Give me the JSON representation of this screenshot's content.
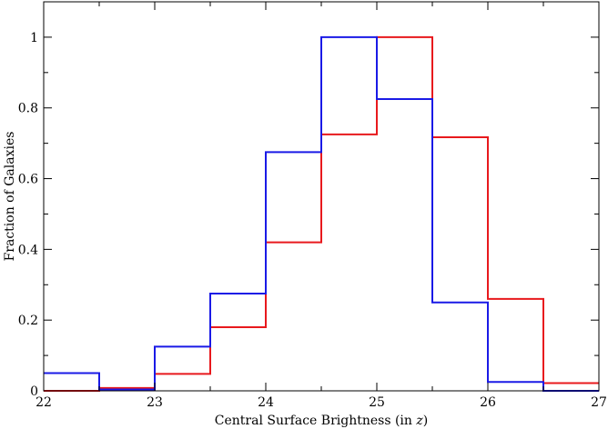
{
  "chart_data": {
    "type": "step-histogram",
    "xlabel": "Central Surface Brightness (in ",
    "xlabel_var": "z",
    "xlabel_close": ")",
    "ylabel": "Fraction of Galaxies",
    "xlim": [
      22,
      27
    ],
    "ylim": [
      0,
      1.1
    ],
    "xticks": [
      22,
      23,
      24,
      25,
      26,
      27
    ],
    "yticks": [
      0,
      0.2,
      0.4,
      0.6,
      0.8,
      1
    ],
    "ytick_labels": [
      "0",
      "0.2",
      "0.4",
      "0.6",
      "0.8",
      "1"
    ],
    "bin_edges": [
      22,
      22.5,
      23,
      23.5,
      24,
      24.5,
      25,
      25.5,
      26,
      26.5,
      27
    ],
    "series": [
      {
        "color": "#e8191d",
        "values": [
          0.0,
          0.008,
          0.048,
          0.18,
          0.42,
          0.725,
          1.0,
          0.717,
          0.26,
          0.022
        ]
      },
      {
        "color": "#1a1ae6",
        "values": [
          0.05,
          0.004,
          0.125,
          0.275,
          0.675,
          1.0,
          0.825,
          0.25,
          0.025,
          0.0
        ]
      }
    ],
    "grid": false,
    "legend": "none"
  }
}
